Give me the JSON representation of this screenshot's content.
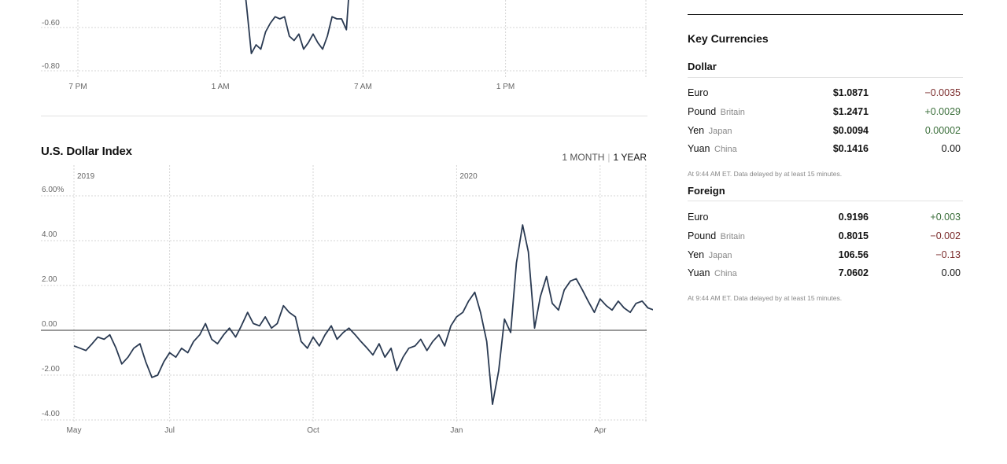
{
  "colors": {
    "negative": "#7a2a2a",
    "positive": "#3a6e3a",
    "neutral": "#121212",
    "line": "#2a3a52"
  },
  "chart_data": [
    {
      "type": "line",
      "title": "",
      "xlabel": "",
      "ylabel": "",
      "x_ticks": [
        "7 PM",
        "1 AM",
        "7 AM",
        "1 PM"
      ],
      "y_ticks": [
        "-0.60",
        "-0.80"
      ],
      "grid": true,
      "note": "intraday view, only lower portion visible",
      "series": [
        {
          "values_x_hours_after_6pm": [
            7.9,
            8.1,
            8.3,
            8.5,
            8.7,
            8.9,
            9.1,
            9.3,
            9.5,
            9.7,
            9.9,
            10.1,
            10.3,
            10.5,
            10.7,
            10.9,
            11.1,
            11.3,
            11.5,
            11.7,
            11.9,
            12.1,
            12.3,
            12.5
          ],
          "values_y": [
            -0.3,
            -0.5,
            -0.72,
            -0.68,
            -0.7,
            -0.62,
            -0.58,
            -0.55,
            -0.56,
            -0.55,
            -0.64,
            -0.66,
            -0.63,
            -0.7,
            -0.67,
            -0.63,
            -0.67,
            -0.7,
            -0.64,
            -0.55,
            -0.56,
            -0.56,
            -0.61,
            -0.3
          ]
        }
      ]
    },
    {
      "type": "line",
      "title": "U.S. Dollar Index",
      "xlabel": "",
      "ylabel": "",
      "ylim": [
        -4.2,
        6.3
      ],
      "y_ticks": [
        "6.00%",
        "4.00",
        "2.00",
        "0.00",
        "-2.00",
        "-4.00"
      ],
      "x_ticks": [
        "May",
        "Jul",
        "Oct",
        "Jan",
        "Apr"
      ],
      "year_ticks": [
        "2019",
        "2020"
      ],
      "grid": true,
      "series": [
        {
          "x_months_since_may1_2019": [
            0.0,
            0.13,
            0.25,
            0.38,
            0.5,
            0.63,
            0.75,
            0.88,
            1.0,
            1.13,
            1.25,
            1.38,
            1.5,
            1.63,
            1.75,
            1.88,
            2.0,
            2.13,
            2.25,
            2.38,
            2.5,
            2.63,
            2.75,
            2.88,
            3.0,
            3.13,
            3.25,
            3.38,
            3.5,
            3.63,
            3.75,
            3.88,
            4.0,
            4.13,
            4.25,
            4.38,
            4.5,
            4.63,
            4.75,
            4.88,
            5.0,
            5.13,
            5.25,
            5.38,
            5.5,
            5.63,
            5.75,
            5.88,
            6.0,
            6.13,
            6.25,
            6.38,
            6.5,
            6.63,
            6.75,
            6.88,
            7.0,
            7.13,
            7.25,
            7.38,
            7.5,
            7.63,
            7.75,
            7.88,
            8.0,
            8.13,
            8.25,
            8.38,
            8.5,
            8.63,
            8.75,
            8.88,
            9.0,
            9.13,
            9.25,
            9.38,
            9.5,
            9.63,
            9.75,
            9.88,
            10.0,
            10.13,
            10.25,
            10.38,
            10.5,
            10.63,
            10.75,
            10.88,
            11.0,
            11.13,
            11.25,
            11.38,
            11.5,
            11.63,
            11.75,
            11.88,
            12.0,
            12.13,
            12.25,
            12.38,
            12.5
          ],
          "y_percent": [
            -0.7,
            -0.8,
            -0.9,
            -0.6,
            -0.3,
            -0.4,
            -0.2,
            -0.8,
            -1.5,
            -1.2,
            -0.8,
            -0.6,
            -1.4,
            -2.1,
            -2.0,
            -1.4,
            -1.0,
            -1.2,
            -0.8,
            -1.0,
            -0.5,
            -0.2,
            0.3,
            -0.4,
            -0.6,
            -0.2,
            0.1,
            -0.3,
            0.2,
            0.8,
            0.3,
            0.2,
            0.6,
            0.1,
            0.3,
            1.1,
            0.8,
            0.6,
            -0.5,
            -0.8,
            -0.3,
            -0.7,
            -0.2,
            0.2,
            -0.4,
            -0.1,
            0.1,
            -0.2,
            -0.5,
            -0.8,
            -1.1,
            -0.6,
            -1.2,
            -0.8,
            -1.8,
            -1.2,
            -0.8,
            -0.7,
            -0.4,
            -0.9,
            -0.5,
            -0.2,
            -0.7,
            0.2,
            0.6,
            0.8,
            1.3,
            1.7,
            0.8,
            -0.5,
            -3.3,
            -1.8,
            0.5,
            -0.1,
            3.0,
            4.7,
            3.5,
            0.1,
            1.5,
            2.4,
            1.2,
            0.9,
            1.8,
            2.2,
            2.3,
            1.8,
            1.3,
            0.8,
            1.4,
            1.1,
            0.9,
            1.3,
            1.0,
            0.8,
            1.2,
            1.3,
            1.0,
            0.9,
            1.2,
            1.0,
            1.3
          ]
        }
      ]
    }
  ],
  "index": {
    "title": "U.S. Dollar Index",
    "range_month": "1 MONTH",
    "range_sep": "|",
    "range_year": "1 YEAR"
  },
  "key_currencies": {
    "title": "Key Currencies",
    "note": "At 9:44 AM ET. Data delayed by at least 15 minutes.",
    "dollar": {
      "title": "Dollar",
      "rows": [
        {
          "name": "Euro",
          "country": "",
          "value": "$1.0871",
          "change": "−0.0035",
          "dir": "negative"
        },
        {
          "name": "Pound",
          "country": "Britain",
          "value": "$1.2471",
          "change": "+0.0029",
          "dir": "positive"
        },
        {
          "name": "Yen",
          "country": "Japan",
          "value": "$0.0094",
          "change": "0.00002",
          "dir": "positive"
        },
        {
          "name": "Yuan",
          "country": "China",
          "value": "$0.1416",
          "change": "0.00",
          "dir": "neutral"
        }
      ]
    },
    "foreign": {
      "title": "Foreign",
      "rows": [
        {
          "name": "Euro",
          "country": "",
          "value": "0.9196",
          "change": "+0.003",
          "dir": "positive"
        },
        {
          "name": "Pound",
          "country": "Britain",
          "value": "0.8015",
          "change": "−0.002",
          "dir": "negative"
        },
        {
          "name": "Yen",
          "country": "Japan",
          "value": "106.56",
          "change": "−0.13",
          "dir": "negative"
        },
        {
          "name": "Yuan",
          "country": "China",
          "value": "7.0602",
          "change": "0.00",
          "dir": "neutral"
        }
      ]
    }
  }
}
